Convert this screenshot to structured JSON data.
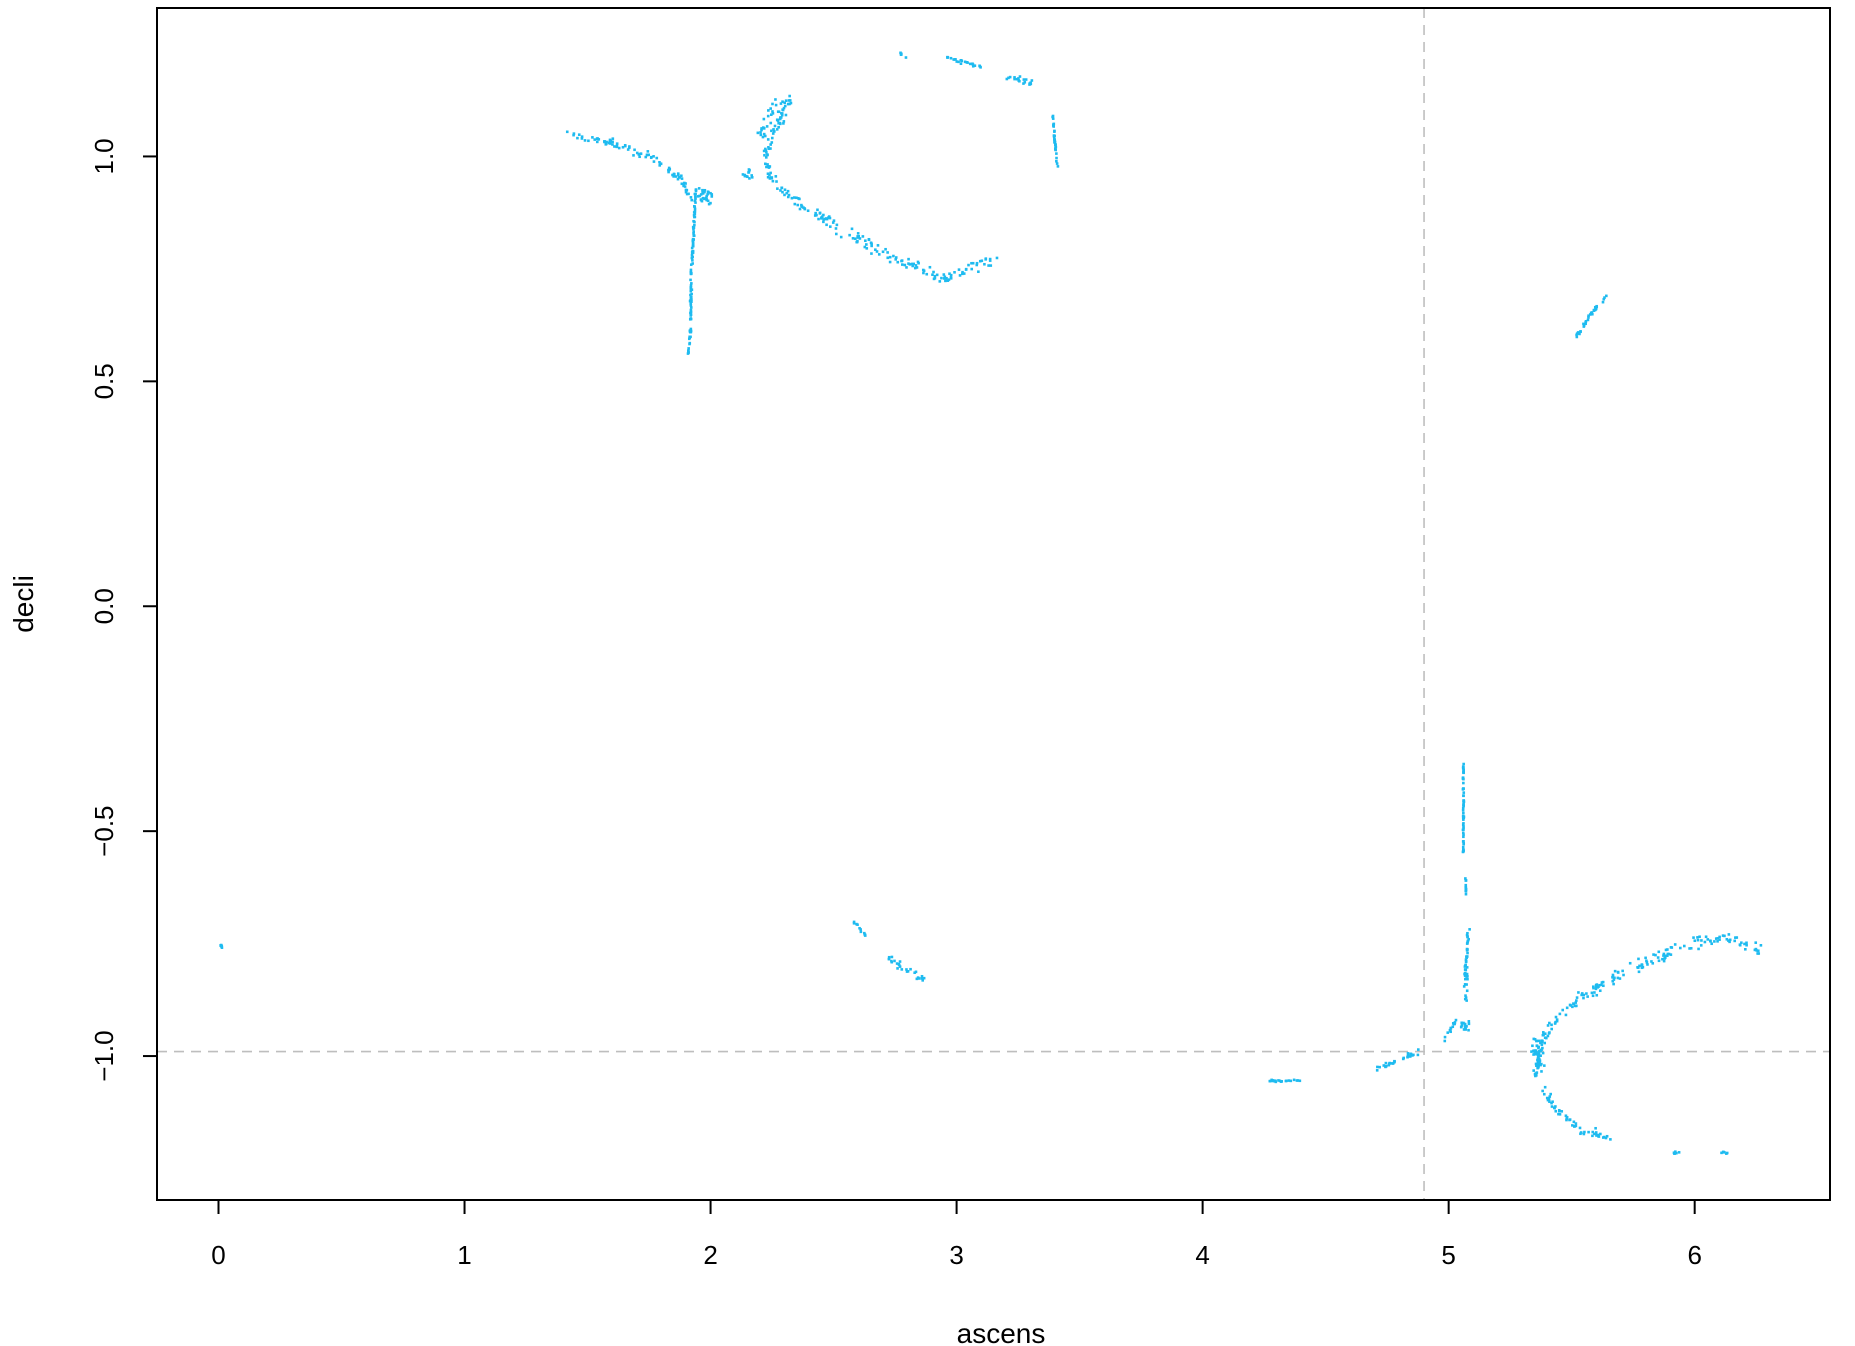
{
  "chart_data": {
    "type": "scatter",
    "title": "",
    "xlabel": "ascens",
    "ylabel": "decli",
    "xlim": [
      -0.25,
      6.55
    ],
    "ylim": [
      -1.32,
      1.33
    ],
    "x_ticks": [
      0,
      1,
      2,
      3,
      4,
      5,
      6
    ],
    "x_tick_labels": [
      "0",
      "1",
      "2",
      "3",
      "4",
      "5",
      "6"
    ],
    "y_ticks": [
      -1.0,
      -0.5,
      0.0,
      0.5,
      1.0
    ],
    "y_tick_labels": [
      "−1.0",
      "−0.5",
      "0.0",
      "0.5",
      "1.0"
    ],
    "point_color": "#1EBBF0",
    "reference_line_color": "#BEBEBE",
    "reference_lines": {
      "vertical_x": 4.9,
      "horizontal_y": -0.99
    },
    "grid": false,
    "legend": "none",
    "clusters": [
      {
        "shape": "curve",
        "points": [
          [
            1.42,
            1.05
          ],
          [
            1.6,
            1.03
          ],
          [
            1.75,
            1.0
          ],
          [
            1.88,
            0.95
          ],
          [
            1.93,
            0.9
          ]
        ],
        "spread": 0.008
      },
      {
        "shape": "curve",
        "points": [
          [
            1.94,
            0.93
          ],
          [
            1.93,
            0.82
          ],
          [
            1.92,
            0.72
          ],
          [
            1.92,
            0.62
          ],
          [
            1.91,
            0.56
          ]
        ],
        "spread": 0.005
      },
      {
        "shape": "blob",
        "center": [
          1.98,
          0.91
        ],
        "radius": [
          0.05,
          0.04
        ]
      },
      {
        "shape": "blob",
        "center": [
          2.15,
          0.96
        ],
        "radius": [
          0.04,
          0.02
        ]
      },
      {
        "shape": "curve",
        "points": [
          [
            2.33,
            1.13
          ],
          [
            2.26,
            1.06
          ],
          [
            2.22,
            1.0
          ],
          [
            2.25,
            0.94
          ],
          [
            2.35,
            0.9
          ],
          [
            2.55,
            0.83
          ],
          [
            2.8,
            0.76
          ],
          [
            2.95,
            0.73
          ],
          [
            3.1,
            0.76
          ],
          [
            3.16,
            0.77
          ]
        ],
        "spread": 0.014
      },
      {
        "shape": "curve",
        "points": [
          [
            2.2,
            1.04
          ],
          [
            2.26,
            1.1
          ],
          [
            2.34,
            1.13
          ]
        ],
        "spread": 0.02
      },
      {
        "shape": "curve",
        "points": [
          [
            2.77,
            1.23
          ],
          [
            2.8,
            1.22
          ]
        ],
        "spread": 0.004
      },
      {
        "shape": "curve",
        "points": [
          [
            2.95,
            1.22
          ],
          [
            3.1,
            1.2
          ]
        ],
        "spread": 0.004
      },
      {
        "shape": "curve",
        "points": [
          [
            3.2,
            1.18
          ],
          [
            3.32,
            1.16
          ]
        ],
        "spread": 0.006
      },
      {
        "shape": "curve",
        "points": [
          [
            3.39,
            1.09
          ],
          [
            3.4,
            1.03
          ],
          [
            3.41,
            0.98
          ]
        ],
        "spread": 0.004
      },
      {
        "shape": "curve",
        "points": [
          [
            5.52,
            0.6
          ],
          [
            5.58,
            0.65
          ],
          [
            5.64,
            0.69
          ]
        ],
        "spread": 0.005
      },
      {
        "shape": "blob",
        "center": [
          0.01,
          -0.755
        ],
        "radius": [
          0.01,
          0.006
        ]
      },
      {
        "shape": "curve",
        "points": [
          [
            2.58,
            -0.7
          ],
          [
            2.63,
            -0.73
          ]
        ],
        "spread": 0.006
      },
      {
        "shape": "curve",
        "points": [
          [
            2.72,
            -0.78
          ],
          [
            2.8,
            -0.81
          ],
          [
            2.87,
            -0.83
          ]
        ],
        "spread": 0.008
      },
      {
        "shape": "curve",
        "points": [
          [
            5.06,
            -0.35
          ],
          [
            5.06,
            -0.48
          ],
          [
            5.06,
            -0.55
          ]
        ],
        "spread": 0.003
      },
      {
        "shape": "curve",
        "points": [
          [
            5.07,
            -0.6
          ],
          [
            5.07,
            -0.64
          ]
        ],
        "spread": 0.003
      },
      {
        "shape": "curve",
        "points": [
          [
            5.08,
            -0.72
          ],
          [
            5.07,
            -0.8
          ],
          [
            5.07,
            -0.88
          ]
        ],
        "spread": 0.01
      },
      {
        "shape": "blob",
        "center": [
          5.07,
          -0.93
        ],
        "radius": [
          0.04,
          0.03
        ]
      },
      {
        "shape": "curve",
        "points": [
          [
            5.03,
            -0.92
          ],
          [
            4.98,
            -0.97
          ]
        ],
        "spread": 0.006
      },
      {
        "shape": "curve",
        "points": [
          [
            4.25,
            -1.055
          ],
          [
            4.4,
            -1.055
          ]
        ],
        "spread": 0.002
      },
      {
        "shape": "curve",
        "points": [
          [
            4.7,
            -1.03
          ],
          [
            4.8,
            -1.01
          ],
          [
            4.88,
            -0.99
          ]
        ],
        "spread": 0.006
      },
      {
        "shape": "curve",
        "points": [
          [
            5.35,
            -1.05
          ],
          [
            5.38,
            -0.97
          ],
          [
            5.45,
            -0.91
          ],
          [
            5.6,
            -0.85
          ],
          [
            5.8,
            -0.79
          ],
          [
            6.0,
            -0.75
          ],
          [
            6.12,
            -0.74
          ],
          [
            6.2,
            -0.75
          ],
          [
            6.27,
            -0.76
          ]
        ],
        "spread": 0.014
      },
      {
        "shape": "blob",
        "center": [
          5.36,
          -1.0
        ],
        "radius": [
          0.04,
          0.08
        ]
      },
      {
        "shape": "curve",
        "points": [
          [
            5.38,
            -1.07
          ],
          [
            5.44,
            -1.12
          ],
          [
            5.52,
            -1.16
          ],
          [
            5.66,
            -1.18
          ]
        ],
        "spread": 0.012
      },
      {
        "shape": "blob",
        "center": [
          5.93,
          -1.215
        ],
        "radius": [
          0.05,
          0.008
        ]
      },
      {
        "shape": "blob",
        "center": [
          6.12,
          -1.215
        ],
        "radius": [
          0.025,
          0.008
        ]
      }
    ]
  }
}
